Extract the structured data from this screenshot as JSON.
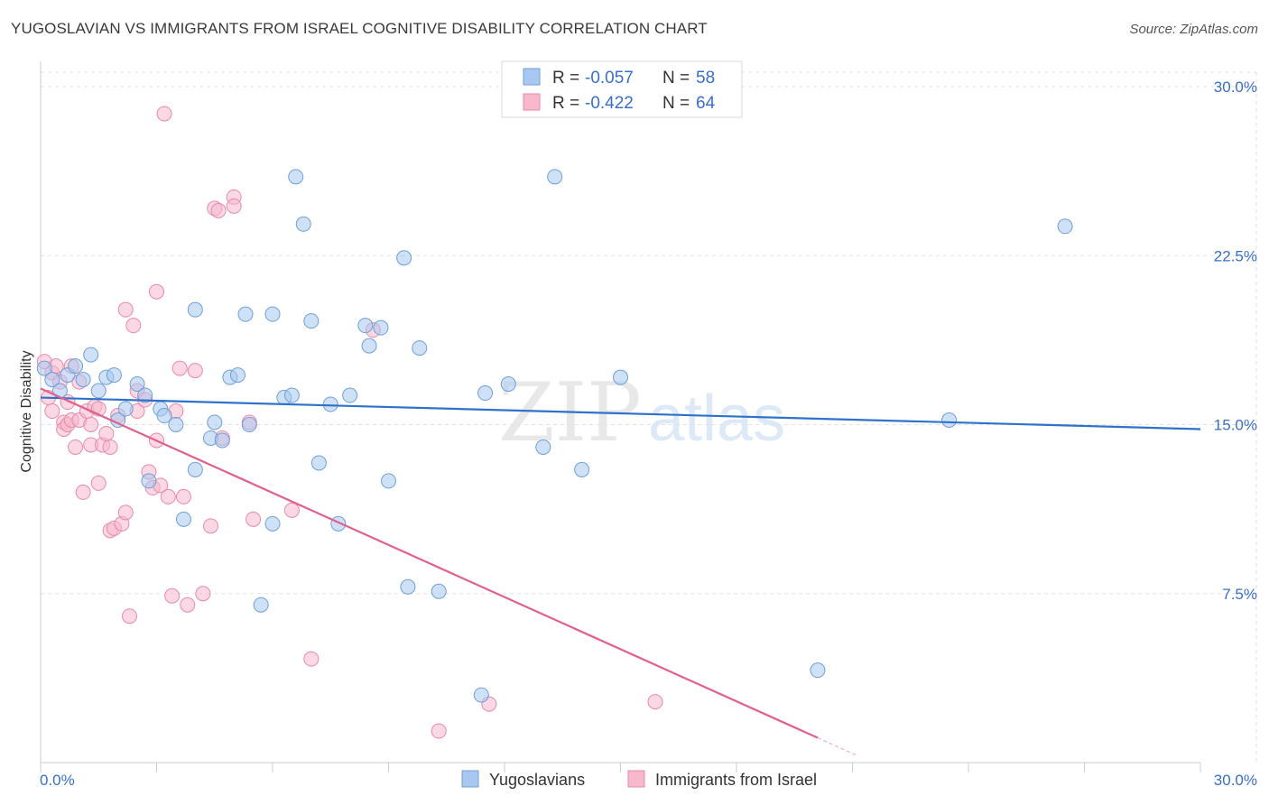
{
  "title": "YUGOSLAVIAN VS IMMIGRANTS FROM ISRAEL COGNITIVE DISABILITY CORRELATION CHART",
  "source": "Source: ZipAtlas.com",
  "watermark": {
    "zip": "ZIP",
    "atlas": "atlas"
  },
  "legend_top": {
    "rows": [
      {
        "r_label": "R = ",
        "r_value": "-0.057",
        "n_label": "N = ",
        "n_value": "58"
      },
      {
        "r_label": "R = ",
        "r_value": "-0.422",
        "n_label": "N = ",
        "n_value": "64"
      }
    ]
  },
  "colors": {
    "blue_fill": "#a8c8f0",
    "blue_stroke": "#6f9fd8",
    "blue_line": "#2f72c9",
    "pink_fill": "#f7b8cc",
    "pink_stroke": "#e88aa8",
    "pink_line": "#e0608e",
    "value_text": "#3a6fc7",
    "grid": "#e2e2e2",
    "axis_text": "#3a6fc7"
  },
  "chart_data": {
    "type": "scatter",
    "title": "YUGOSLAVIAN VS IMMIGRANTS FROM ISRAEL COGNITIVE DISABILITY CORRELATION CHART",
    "xlabel": "",
    "ylabel": "Cognitive Disability",
    "xlim": [
      0,
      30
    ],
    "ylim": [
      0,
      30
    ],
    "x_tick_labels": [
      "0.0%",
      "30.0%"
    ],
    "y_ticks": [
      7.5,
      15.0,
      22.5,
      30.0
    ],
    "y_tick_labels": [
      "7.5%",
      "15.0%",
      "22.5%",
      "30.0%"
    ],
    "legend": [
      "Yugoslavians",
      "Immigrants from Israel"
    ],
    "series": [
      {
        "name": "Yugoslavians",
        "r": -0.057,
        "n": 58,
        "trend": {
          "x0": 0,
          "y0": 16.2,
          "x1": 30,
          "y1": 14.8
        },
        "points": [
          [
            0.1,
            17.5
          ],
          [
            0.3,
            17.0
          ],
          [
            0.5,
            16.5
          ],
          [
            0.7,
            17.2
          ],
          [
            0.9,
            17.6
          ],
          [
            1.1,
            17.0
          ],
          [
            1.3,
            18.1
          ],
          [
            1.5,
            16.5
          ],
          [
            1.7,
            17.1
          ],
          [
            1.9,
            17.2
          ],
          [
            2.0,
            15.2
          ],
          [
            2.2,
            15.7
          ],
          [
            2.5,
            16.8
          ],
          [
            2.7,
            16.3
          ],
          [
            2.8,
            12.5
          ],
          [
            3.1,
            15.7
          ],
          [
            3.2,
            15.4
          ],
          [
            3.5,
            15.0
          ],
          [
            3.7,
            10.8
          ],
          [
            4.0,
            13.0
          ],
          [
            4.0,
            20.1
          ],
          [
            4.4,
            14.4
          ],
          [
            4.5,
            15.1
          ],
          [
            4.7,
            14.3
          ],
          [
            4.9,
            17.1
          ],
          [
            5.1,
            17.2
          ],
          [
            5.3,
            19.9
          ],
          [
            5.4,
            15.0
          ],
          [
            5.7,
            7.0
          ],
          [
            6.0,
            10.6
          ],
          [
            6.0,
            19.9
          ],
          [
            6.3,
            16.2
          ],
          [
            6.5,
            16.3
          ],
          [
            6.6,
            26.0
          ],
          [
            6.8,
            23.9
          ],
          [
            7.0,
            19.6
          ],
          [
            7.2,
            13.3
          ],
          [
            7.5,
            15.9
          ],
          [
            7.7,
            10.6
          ],
          [
            8.0,
            16.3
          ],
          [
            8.4,
            19.4
          ],
          [
            8.5,
            18.5
          ],
          [
            8.8,
            19.3
          ],
          [
            9.0,
            12.5
          ],
          [
            9.4,
            22.4
          ],
          [
            9.5,
            7.8
          ],
          [
            9.8,
            18.4
          ],
          [
            10.3,
            7.6
          ],
          [
            11.4,
            3.0
          ],
          [
            11.5,
            16.4
          ],
          [
            12.1,
            16.8
          ],
          [
            13.0,
            14.0
          ],
          [
            13.3,
            26.0
          ],
          [
            14.0,
            13.0
          ],
          [
            15.0,
            17.1
          ],
          [
            20.1,
            4.1
          ],
          [
            23.5,
            15.2
          ],
          [
            26.5,
            23.8
          ]
        ]
      },
      {
        "name": "Immigrants from Israel",
        "r": -0.422,
        "n": 64,
        "trend": {
          "x0": 0,
          "y0": 16.6,
          "x1": 20.1,
          "y1": 1.1
        },
        "points": [
          [
            0.1,
            17.8
          ],
          [
            0.2,
            16.2
          ],
          [
            0.3,
            15.6
          ],
          [
            0.3,
            17.3
          ],
          [
            0.4,
            17.6
          ],
          [
            0.5,
            16.9
          ],
          [
            0.6,
            15.1
          ],
          [
            0.6,
            14.8
          ],
          [
            0.7,
            15.0
          ],
          [
            0.7,
            16.0
          ],
          [
            0.8,
            17.6
          ],
          [
            0.8,
            15.2
          ],
          [
            0.9,
            14.0
          ],
          [
            1.0,
            16.9
          ],
          [
            1.0,
            15.2
          ],
          [
            1.1,
            12.0
          ],
          [
            1.2,
            15.6
          ],
          [
            1.3,
            14.1
          ],
          [
            1.3,
            15.0
          ],
          [
            1.4,
            15.8
          ],
          [
            1.5,
            15.7
          ],
          [
            1.5,
            12.4
          ],
          [
            1.6,
            14.1
          ],
          [
            1.7,
            14.6
          ],
          [
            1.8,
            14.0
          ],
          [
            1.8,
            10.3
          ],
          [
            1.9,
            10.4
          ],
          [
            2.0,
            15.4
          ],
          [
            2.1,
            10.6
          ],
          [
            2.2,
            11.1
          ],
          [
            2.2,
            20.1
          ],
          [
            2.3,
            6.5
          ],
          [
            2.4,
            19.4
          ],
          [
            2.5,
            16.5
          ],
          [
            2.5,
            15.6
          ],
          [
            2.7,
            16.1
          ],
          [
            2.8,
            12.9
          ],
          [
            2.9,
            12.2
          ],
          [
            3.0,
            14.3
          ],
          [
            3.0,
            20.9
          ],
          [
            3.1,
            12.3
          ],
          [
            3.2,
            28.8
          ],
          [
            3.3,
            11.8
          ],
          [
            3.4,
            7.4
          ],
          [
            3.5,
            15.6
          ],
          [
            3.6,
            17.5
          ],
          [
            3.7,
            11.8
          ],
          [
            3.8,
            7.0
          ],
          [
            4.0,
            17.4
          ],
          [
            4.2,
            7.5
          ],
          [
            4.4,
            10.5
          ],
          [
            4.5,
            24.6
          ],
          [
            4.6,
            24.5
          ],
          [
            4.7,
            14.4
          ],
          [
            5.0,
            25.1
          ],
          [
            5.0,
            24.7
          ],
          [
            5.4,
            15.1
          ],
          [
            5.5,
            10.8
          ],
          [
            6.5,
            11.2
          ],
          [
            7.0,
            4.6
          ],
          [
            8.6,
            19.2
          ],
          [
            10.3,
            1.4
          ],
          [
            11.6,
            2.6
          ],
          [
            15.9,
            2.7
          ]
        ]
      }
    ]
  }
}
